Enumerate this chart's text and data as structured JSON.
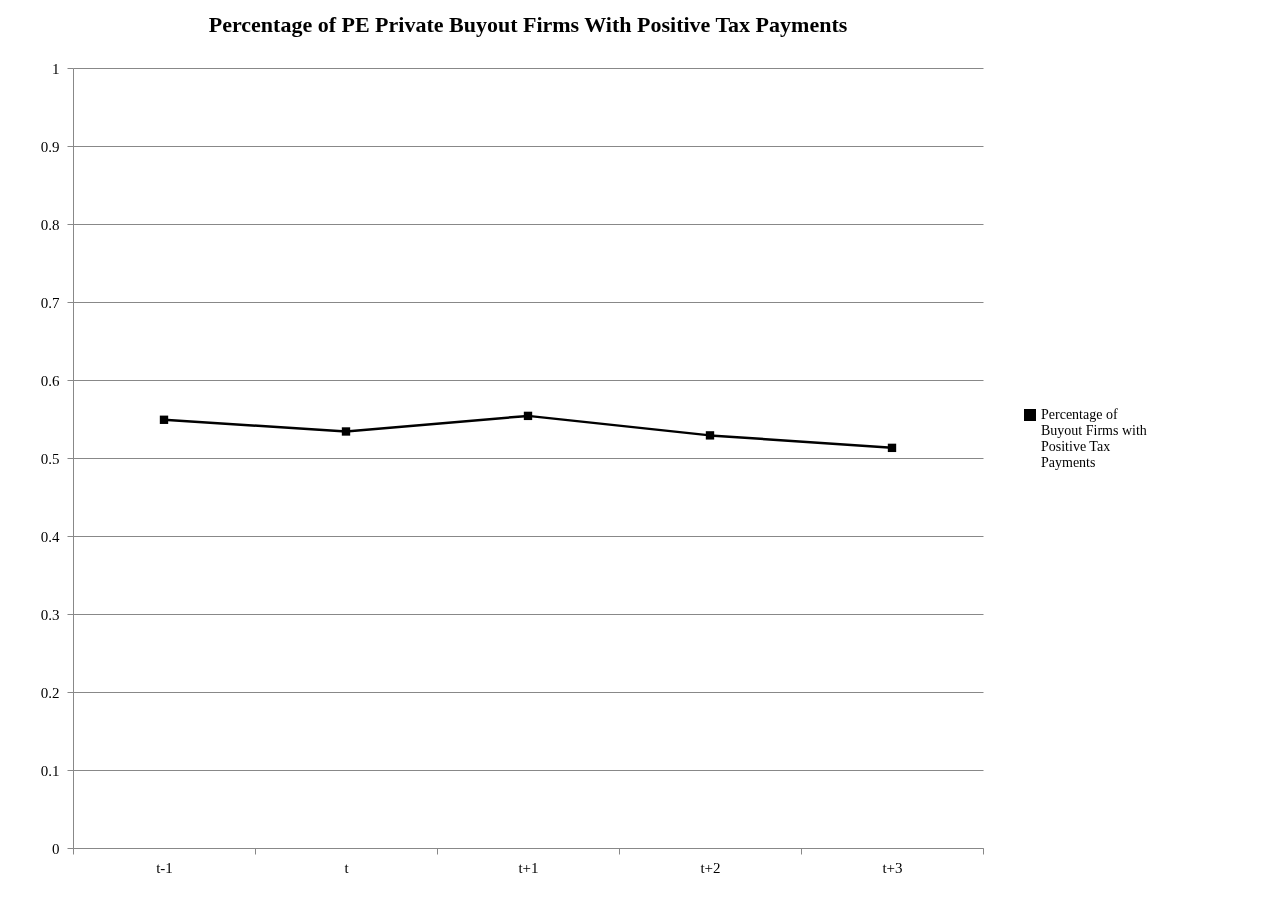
{
  "chart_data": {
    "type": "line",
    "title": "Percentage of PE Private Buyout Firms With Positive Tax Payments",
    "categories": [
      "t-1",
      "t",
      "t+1",
      "t+2",
      "t+3"
    ],
    "series": [
      {
        "name": "Percentage of Buyout Firms with Positive Tax Payments",
        "color": "#000000",
        "values": [
          0.549,
          0.534,
          0.554,
          0.529,
          0.513
        ]
      }
    ],
    "ylim": [
      0,
      1
    ],
    "yticks": [
      0,
      0.1,
      0.2,
      0.3,
      0.4,
      0.5,
      0.6,
      0.7,
      0.8,
      0.9,
      1
    ],
    "grid": "y",
    "legend": "right",
    "marker": "square",
    "line_style": "solid"
  }
}
